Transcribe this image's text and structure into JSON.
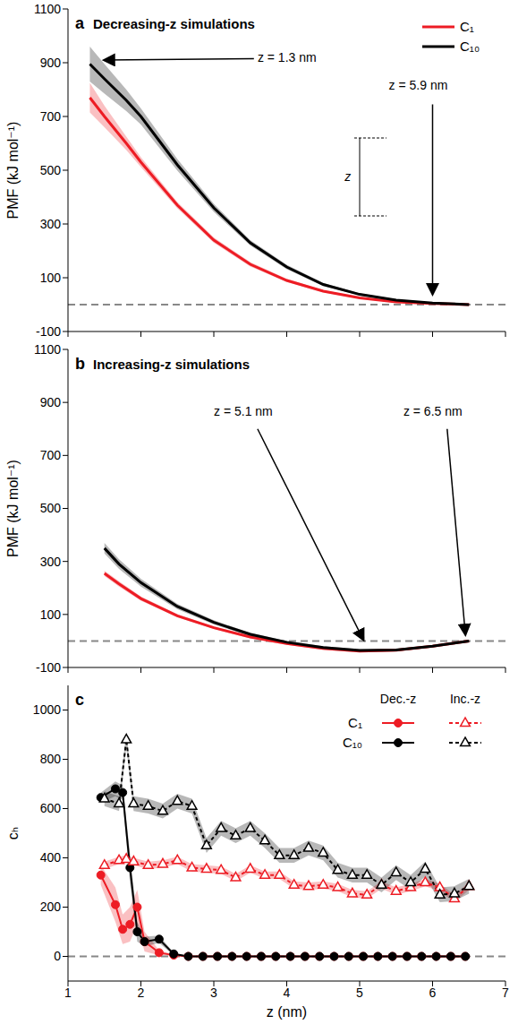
{
  "chart_data": [
    {
      "type": "line",
      "label": "a",
      "title": "Decreasing-z simulations",
      "y_label": "PMF (kJ mol⁻¹)",
      "xlim": [
        1,
        7
      ],
      "xticks": [
        1,
        2,
        3,
        4,
        5,
        6,
        7
      ],
      "ylim": [
        -100,
        1100
      ],
      "yticks": [
        -100,
        100,
        300,
        500,
        700,
        900,
        1100
      ],
      "tick_labels": "y",
      "legend": "upper right",
      "hline": 0,
      "annotations": [
        "z = 1.3 nm",
        "z = 5.9 nm",
        "z"
      ],
      "series": [
        {
          "name": "C₁",
          "color": "#ed1c24",
          "x": [
            1.3,
            1.5,
            1.8,
            2.0,
            2.5,
            3.0,
            3.5,
            4.0,
            4.5,
            5.0,
            5.5,
            6.0,
            6.5
          ],
          "values": [
            770,
            700,
            600,
            530,
            370,
            240,
            150,
            90,
            50,
            25,
            10,
            4,
            0
          ],
          "error": [
            55,
            40,
            25,
            18,
            12,
            10,
            8,
            6,
            4,
            3,
            2,
            1,
            0
          ]
        },
        {
          "name": "C₁₀",
          "color": "#000000",
          "x": [
            1.3,
            1.5,
            1.8,
            2.0,
            2.5,
            3.0,
            3.5,
            4.0,
            4.5,
            5.0,
            5.5,
            6.0,
            6.5
          ],
          "values": [
            895,
            840,
            760,
            700,
            520,
            360,
            230,
            140,
            75,
            38,
            17,
            6,
            0
          ],
          "error": [
            65,
            55,
            40,
            30,
            22,
            15,
            10,
            8,
            6,
            4,
            3,
            2,
            0
          ]
        }
      ]
    },
    {
      "type": "line",
      "label": "b",
      "title": "Increasing-z simulations",
      "y_label": "PMF (kJ mol⁻¹)",
      "xlim": [
        1,
        7
      ],
      "xticks": [
        1,
        2,
        3,
        4,
        5,
        6,
        7
      ],
      "ylim": [
        -100,
        1100
      ],
      "yticks": [
        -100,
        100,
        300,
        500,
        700,
        900,
        1100
      ],
      "tick_labels": "y",
      "hline": 0,
      "annotations": [
        "z = 5.1 nm",
        "z = 6.5 nm"
      ],
      "series": [
        {
          "name": "C₁",
          "color": "#ed1c24",
          "x": [
            1.5,
            1.7,
            2.0,
            2.5,
            3.0,
            3.5,
            4.0,
            4.5,
            5.0,
            5.5,
            6.0,
            6.5
          ],
          "values": [
            255,
            215,
            160,
            95,
            50,
            15,
            -10,
            -28,
            -38,
            -35,
            -20,
            0
          ],
          "error": [
            10,
            10,
            8,
            6,
            5,
            5,
            5,
            5,
            5,
            5,
            4,
            0
          ]
        },
        {
          "name": "C₁₀",
          "color": "#000000",
          "x": [
            1.5,
            1.7,
            2.0,
            2.5,
            3.0,
            3.5,
            4.0,
            4.5,
            5.0,
            5.5,
            6.0,
            6.5
          ],
          "values": [
            350,
            290,
            220,
            130,
            70,
            25,
            -5,
            -25,
            -36,
            -34,
            -20,
            0
          ],
          "error": [
            20,
            18,
            15,
            10,
            8,
            6,
            5,
            5,
            5,
            5,
            4,
            0
          ]
        }
      ]
    },
    {
      "type": "line",
      "label": "c",
      "y_label": "cₕ",
      "x_label": "z (nm)",
      "xlim": [
        1,
        7
      ],
      "xticks": [
        1,
        2,
        3,
        4,
        5,
        6,
        7
      ],
      "ylim": [
        -100,
        1100
      ],
      "yticks": [
        0,
        200,
        400,
        600,
        800,
        1000
      ],
      "legend": "upper right",
      "hline": 0,
      "series": [
        {
          "name": "C₁",
          "group": "Dec.-z",
          "color": "#ed1c24",
          "marker": "circle",
          "line_style": "solid",
          "x": [
            1.45,
            1.65,
            1.75,
            1.85,
            1.95,
            2.05,
            2.25,
            2.45,
            2.65,
            2.85,
            3.05,
            3.25,
            3.45,
            3.65,
            3.85,
            4.05,
            4.25,
            4.45,
            4.65,
            4.85,
            5.05,
            5.25,
            5.45,
            5.65,
            5.85,
            6.05,
            6.25,
            6.45
          ],
          "values": [
            330,
            210,
            110,
            130,
            200,
            60,
            15,
            5,
            0,
            0,
            0,
            0,
            0,
            0,
            0,
            0,
            0,
            0,
            0,
            0,
            0,
            0,
            0,
            0,
            0,
            0,
            0,
            0
          ],
          "error": [
            40,
            70,
            60,
            70,
            70,
            40,
            10,
            3,
            0,
            0,
            0,
            0,
            0,
            0,
            0,
            0,
            0,
            0,
            0,
            0,
            0,
            0,
            0,
            0,
            0,
            0,
            0,
            0
          ]
        },
        {
          "name": "C₁₀",
          "group": "Dec.-z",
          "color": "#000000",
          "marker": "circle",
          "line_style": "solid",
          "x": [
            1.45,
            1.65,
            1.75,
            1.85,
            1.95,
            2.05,
            2.25,
            2.45,
            2.65,
            2.85,
            3.05,
            3.25,
            3.45,
            3.65,
            3.85,
            4.05,
            4.25,
            4.45,
            4.65,
            4.85,
            5.05,
            5.25,
            5.45,
            5.65,
            5.85,
            6.05,
            6.25,
            6.45
          ],
          "values": [
            645,
            680,
            665,
            360,
            100,
            60,
            70,
            10,
            0,
            0,
            0,
            0,
            0,
            0,
            0,
            0,
            0,
            0,
            0,
            0,
            0,
            0,
            0,
            0,
            0,
            0,
            0,
            0
          ],
          "error": [
            20,
            30,
            30,
            60,
            40,
            20,
            15,
            5,
            0,
            0,
            0,
            0,
            0,
            0,
            0,
            0,
            0,
            0,
            0,
            0,
            0,
            0,
            0,
            0,
            0,
            0,
            0,
            0
          ]
        },
        {
          "name": "C₁",
          "group": "Inc.-z",
          "color": "#ed1c24",
          "marker": "triangle",
          "line_style": "dashed",
          "x": [
            1.5,
            1.7,
            1.8,
            1.9,
            2.1,
            2.3,
            2.5,
            2.7,
            2.9,
            3.1,
            3.3,
            3.5,
            3.7,
            3.9,
            4.1,
            4.3,
            4.5,
            4.7,
            4.9,
            5.1,
            5.3,
            5.5,
            5.7,
            5.9,
            6.1,
            6.3,
            6.5
          ],
          "values": [
            370,
            390,
            395,
            385,
            370,
            375,
            390,
            360,
            355,
            350,
            320,
            355,
            330,
            330,
            290,
            285,
            290,
            280,
            255,
            250,
            290,
            265,
            280,
            300,
            280,
            235,
            285
          ],
          "error": [
            15,
            15,
            15,
            15,
            15,
            15,
            15,
            15,
            15,
            15,
            15,
            15,
            15,
            15,
            15,
            15,
            15,
            15,
            15,
            15,
            15,
            15,
            15,
            15,
            15,
            15,
            15
          ]
        },
        {
          "name": "C₁₀",
          "group": "Inc.-z",
          "color": "#000000",
          "marker": "triangle",
          "line_style": "dashed",
          "x": [
            1.5,
            1.7,
            1.8,
            1.9,
            2.1,
            2.3,
            2.5,
            2.7,
            2.9,
            3.1,
            3.3,
            3.5,
            3.7,
            3.9,
            4.1,
            4.3,
            4.5,
            4.7,
            4.9,
            5.1,
            5.3,
            5.5,
            5.7,
            5.9,
            6.1,
            6.3,
            6.5
          ],
          "values": [
            640,
            620,
            880,
            620,
            610,
            590,
            630,
            610,
            450,
            520,
            490,
            520,
            470,
            410,
            410,
            440,
            420,
            350,
            330,
            330,
            290,
            340,
            300,
            355,
            250,
            255,
            285
          ],
          "error": [
            30,
            30,
            30,
            30,
            30,
            30,
            30,
            30,
            30,
            30,
            30,
            30,
            30,
            30,
            30,
            30,
            30,
            30,
            30,
            30,
            30,
            30,
            30,
            30,
            30,
            30,
            30
          ]
        }
      ]
    }
  ]
}
